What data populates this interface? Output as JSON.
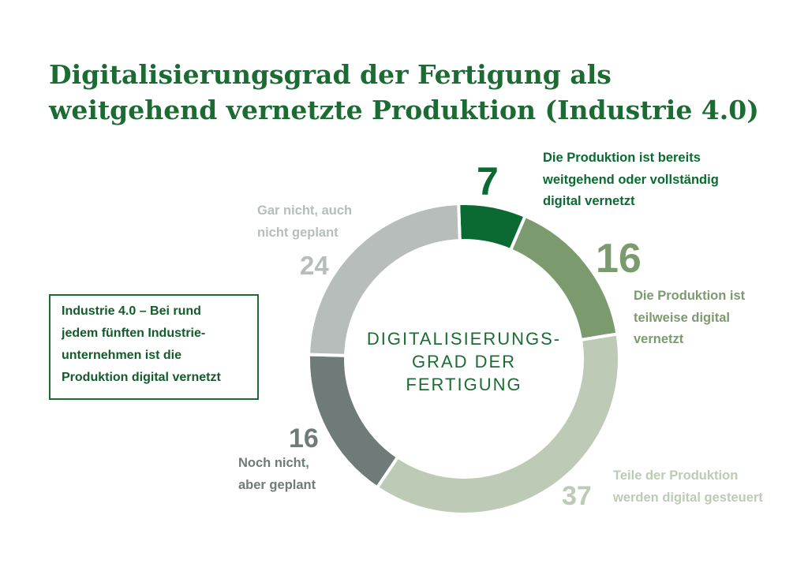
{
  "chart_data": {
    "type": "donut",
    "title": [
      "Digitalisierungsgrad der Fertigung als",
      "weitgehend vernetzte Produktion (Industrie 4.0)"
    ],
    "center_label": [
      "DIGITALISIERUNGS-",
      "GRAD DER",
      "FERTIGUNG"
    ],
    "annotation": [
      "Industrie 4.0 – Bei rund",
      "jedem fünften Industrie-",
      "unternehmen ist die",
      "Produktion digital vernetzt"
    ],
    "categories": [
      [
        "Die Produktion ist bereits",
        "weitgehend oder vollständig",
        "digital vernetzt"
      ],
      [
        "Die Produktion ist",
        "teilweise digital",
        "vernetzt"
      ],
      [
        "Teile der Produktion",
        "werden digital gesteuert"
      ],
      [
        "Noch nicht,",
        "aber geplant"
      ],
      [
        "Gar nicht, auch",
        "nicht geplant"
      ]
    ],
    "values": [
      7,
      16,
      37,
      16,
      24
    ],
    "colors": [
      "#0b6a31",
      "#7b9b6f",
      "#bdcab5",
      "#6f7b78",
      "#b6bdba"
    ]
  }
}
